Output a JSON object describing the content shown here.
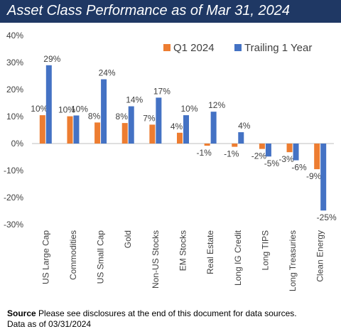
{
  "header": {
    "title": "Asset Class Performance as of Mar 31, 2024"
  },
  "footer": {
    "source_label": "Source",
    "source_text": "Please see disclosures at the end of this document for data sources.",
    "date_text": "Data as of 03/31/2024"
  },
  "colors": {
    "title_bg": "#1f3864",
    "q1": "#ed7d31",
    "trailing": "#4472c4"
  },
  "chart_data": {
    "type": "bar",
    "title": "Asset Class Performance as of Mar 31, 2024",
    "categories": [
      "US Large Cap",
      "Commodities",
      "US Small Cap",
      "Gold",
      "Non-US Stocks",
      "EM Stocks",
      "Real Estate",
      "Long IG Credit",
      "Long TIPS",
      "Long Treasuries",
      "Clean Energy"
    ],
    "series": [
      {
        "name": "Q1 2024",
        "color": "#ed7d31",
        "values": [
          10.5,
          10.1,
          7.8,
          7.6,
          7.0,
          4.0,
          -0.8,
          -1.2,
          -2.0,
          -3.2,
          -9.5
        ],
        "labels": [
          "10%",
          "10%",
          "8%",
          "8%",
          "7%",
          "4%",
          "-1%",
          "-1%",
          "-2%",
          "-3%",
          "-9%"
        ]
      },
      {
        "name": "Trailing 1 Year",
        "color": "#4472c4",
        "values": [
          29.0,
          10.4,
          23.8,
          13.8,
          17.0,
          10.5,
          11.8,
          4.2,
          -4.8,
          -6.2,
          -24.8
        ],
        "labels": [
          "29%",
          "10%",
          "24%",
          "14%",
          "17%",
          "10%",
          "12%",
          "4%",
          "-5%",
          "-6%",
          "-25%"
        ]
      }
    ],
    "ylim": [
      -30,
      40
    ],
    "yticks": [
      -30,
      -20,
      -10,
      0,
      10,
      20,
      30,
      40
    ],
    "ytick_labels": [
      "-30%",
      "-20%",
      "-10%",
      "0%",
      "10%",
      "20%",
      "30%",
      "40%"
    ],
    "grid": false,
    "legend": "top-right"
  }
}
